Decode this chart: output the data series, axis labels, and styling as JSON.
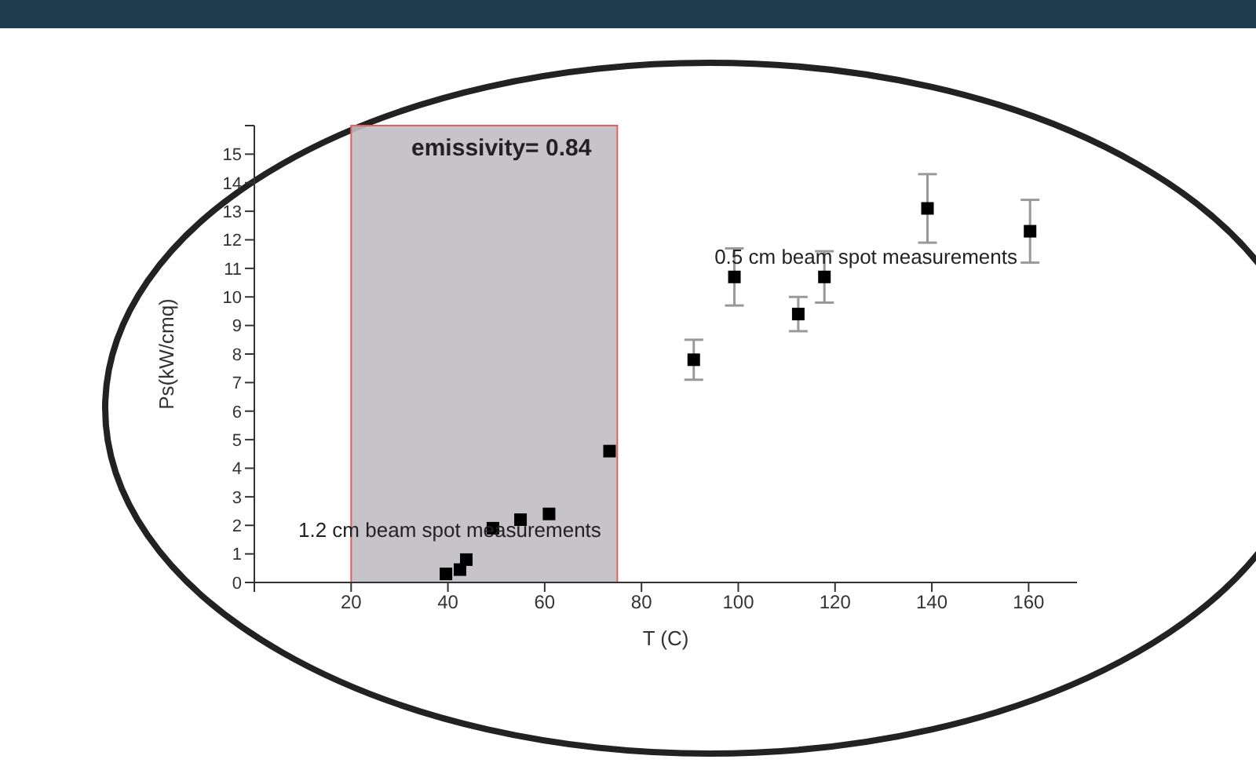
{
  "chart_data": {
    "type": "scatter",
    "xlabel": "T (C)",
    "ylabel": "Ps(kW/cmq)",
    "x": [
      39.6,
      42.5,
      43.8,
      49.3,
      55,
      60.9,
      73.4,
      90.8,
      99.2,
      112.4,
      117.8,
      139.1,
      160.3
    ],
    "series": [
      {
        "color": "#000000",
        "values": [
          0.3,
          0.45,
          0.8,
          1.9,
          2.2,
          2.4,
          4.6,
          7.8,
          10.7,
          9.4,
          10.7,
          13.1,
          12.3
        ],
        "errors": [
          null,
          null,
          null,
          null,
          null,
          null,
          null,
          0.7,
          1,
          0.6,
          0.9,
          1.2,
          1.1
        ]
      }
    ],
    "xlim": [
      0,
      170
    ],
    "xticks": [
      {
        "value": 0,
        "label": null
      },
      20,
      40,
      60,
      80,
      100,
      120,
      140,
      160
    ],
    "ylim": [
      0,
      16
    ],
    "yticks": [
      0,
      1,
      2,
      3,
      4,
      5,
      6,
      7,
      8,
      9,
      10,
      11,
      12,
      13,
      14,
      15,
      {
        "value": 16,
        "label": null
      }
    ],
    "marker": "square",
    "grid": false,
    "legend": false,
    "bands": [
      {
        "axis": "x",
        "from": 20,
        "to": 75,
        "color": "#c0bdc3"
      }
    ],
    "annotations": [
      "emissivity= 0.84",
      "0.5 cm beam spot measurements",
      "1.2 cm beam spot measurements"
    ]
  }
}
